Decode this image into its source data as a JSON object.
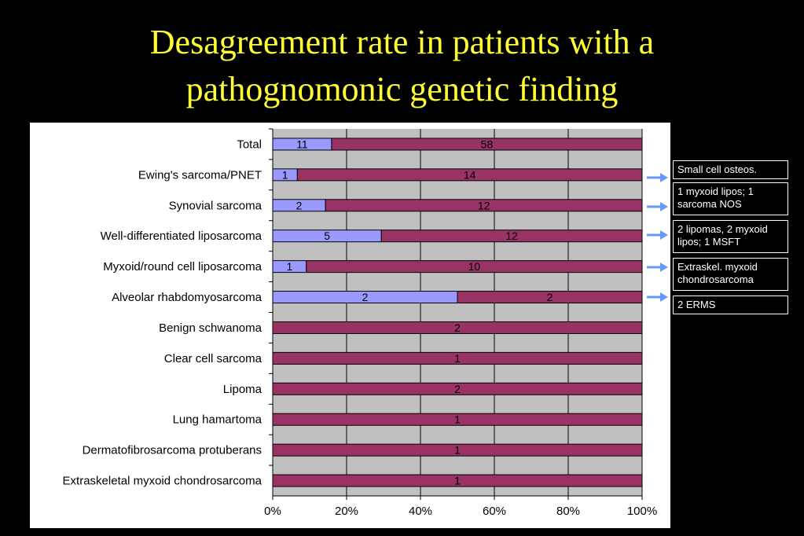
{
  "slide": {
    "title_line1": "Desagreement rate in patients with a",
    "title_line2": "pathognomonic genetic finding"
  },
  "colors": {
    "background": "#000000",
    "title": "#ffff33",
    "agree": "#9999ff",
    "disagree": "#993366",
    "plot_area": "#c0c0c0",
    "arrow": "#6699ff"
  },
  "chart_data": {
    "type": "bar",
    "orientation": "horizontal",
    "stacked": "percent",
    "categories": [
      "Total",
      "Ewing's sarcoma/PNET",
      "Synovial sarcoma",
      "Well-differentiated liposarcoma",
      "Myxoid/round cell liposarcoma",
      "Alveolar rhabdomyosarcoma",
      "Benign schwanoma",
      "Clear cell sarcoma",
      "Lipoma",
      "Lung hamartoma",
      "Dermatofibrosarcoma protuberans",
      "Extraskeletal myxoid chondrosarcoma"
    ],
    "series": [
      {
        "values": [
          11,
          1,
          2,
          5,
          1,
          2,
          0,
          0,
          0,
          0,
          0,
          0
        ]
      },
      {
        "values": [
          58,
          14,
          12,
          12,
          10,
          2,
          2,
          1,
          2,
          1,
          1,
          1
        ]
      }
    ],
    "xticks": [
      "0%",
      "20%",
      "40%",
      "60%",
      "80%",
      "100%"
    ],
    "xlim": [
      0,
      100
    ],
    "grid": true,
    "legend": "none"
  },
  "notes": [
    {
      "row": 1,
      "text": "Small cell osteos."
    },
    {
      "row": 2,
      "text": "1 myxoid lipos; 1 sarcoma NOS"
    },
    {
      "row": 3,
      "text": "2 lipomas, 2 myxoid lipos; 1 MSFT"
    },
    {
      "row": 4,
      "text": "Extraskel. myxoid chondrosarcoma"
    },
    {
      "row": 5,
      "text": "2 ERMS"
    }
  ]
}
